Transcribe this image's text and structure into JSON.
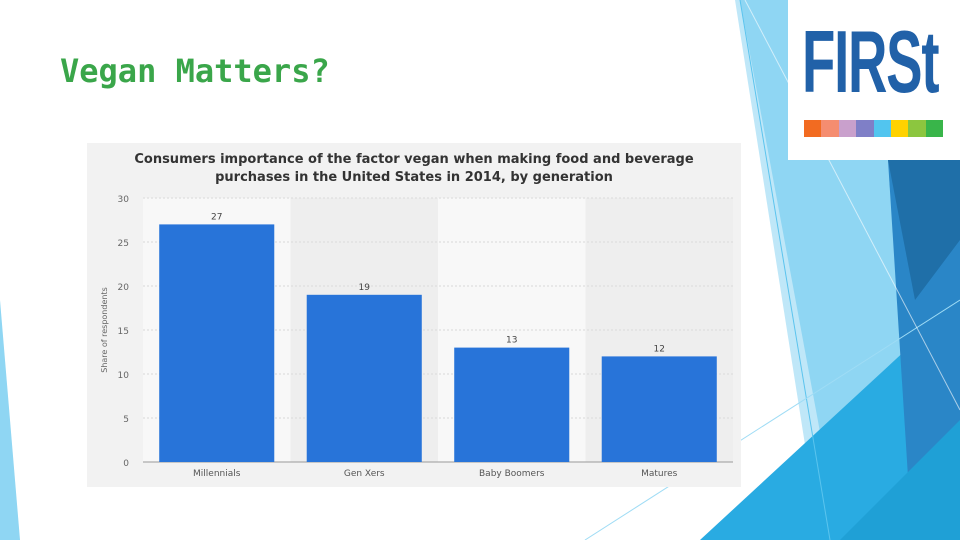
{
  "slide": {
    "title": "Vegan Matters?"
  },
  "logo": {
    "text": "FIRSt",
    "text_color": "#2161a8",
    "stripe_colors": [
      "#f26b21",
      "#f58d70",
      "#c9a0cc",
      "#7f7fc7",
      "#52c5ef",
      "#ffd200",
      "#8cc63f",
      "#39b54a"
    ]
  },
  "theme": {
    "accent": "#3aa64a",
    "deco_colors": [
      "#29abe2",
      "#5bc4ee",
      "#9fdcf5",
      "#1f6fa8",
      "#2a86c7"
    ]
  },
  "chart_data": {
    "type": "bar",
    "title_lines": [
      "Consumers importance of the factor vegan when making food and beverage",
      "purchases in the United States in 2014, by generation"
    ],
    "categories": [
      "Millennials",
      "Gen Xers",
      "Baby Boomers",
      "Matures"
    ],
    "values": [
      27,
      19,
      13,
      12
    ],
    "xlabel": "",
    "ylabel": "Share of respondents",
    "ylim": [
      0,
      30
    ],
    "yticks": [
      0,
      5,
      10,
      15,
      20,
      25,
      30
    ],
    "grid": true,
    "bar_color": "#2874d9",
    "data_labels": true
  }
}
